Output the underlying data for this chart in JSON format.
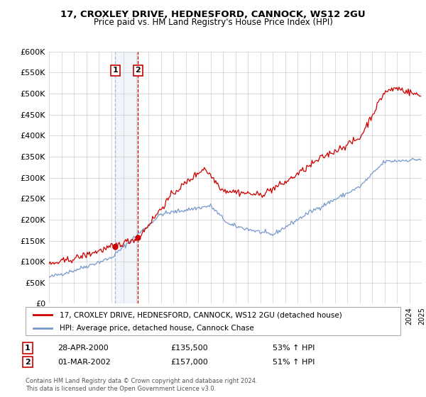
{
  "title": "17, CROXLEY DRIVE, HEDNESFORD, CANNOCK, WS12 2GU",
  "subtitle": "Price paid vs. HM Land Registry's House Price Index (HPI)",
  "legend_line1": "17, CROXLEY DRIVE, HEDNESFORD, CANNOCK, WS12 2GU (detached house)",
  "legend_line2": "HPI: Average price, detached house, Cannock Chase",
  "sale1_date": "28-APR-2000",
  "sale1_price": "£135,500",
  "sale1_hpi": "53% ↑ HPI",
  "sale2_date": "01-MAR-2002",
  "sale2_price": "£157,000",
  "sale2_hpi": "51% ↑ HPI",
  "footer": "Contains HM Land Registry data © Crown copyright and database right 2024.\nThis data is licensed under the Open Government Licence v3.0.",
  "red_color": "#cc0000",
  "blue_color": "#7799cc",
  "shade_color": "#c8d8ee",
  "background_color": "#ffffff",
  "grid_color": "#cccccc",
  "sale1_year": 2000.33,
  "sale2_year": 2002.17,
  "sale1_price_val": 135500,
  "sale2_price_val": 157000,
  "ylim": [
    0,
    600000
  ],
  "xlim": [
    1995,
    2025
  ]
}
